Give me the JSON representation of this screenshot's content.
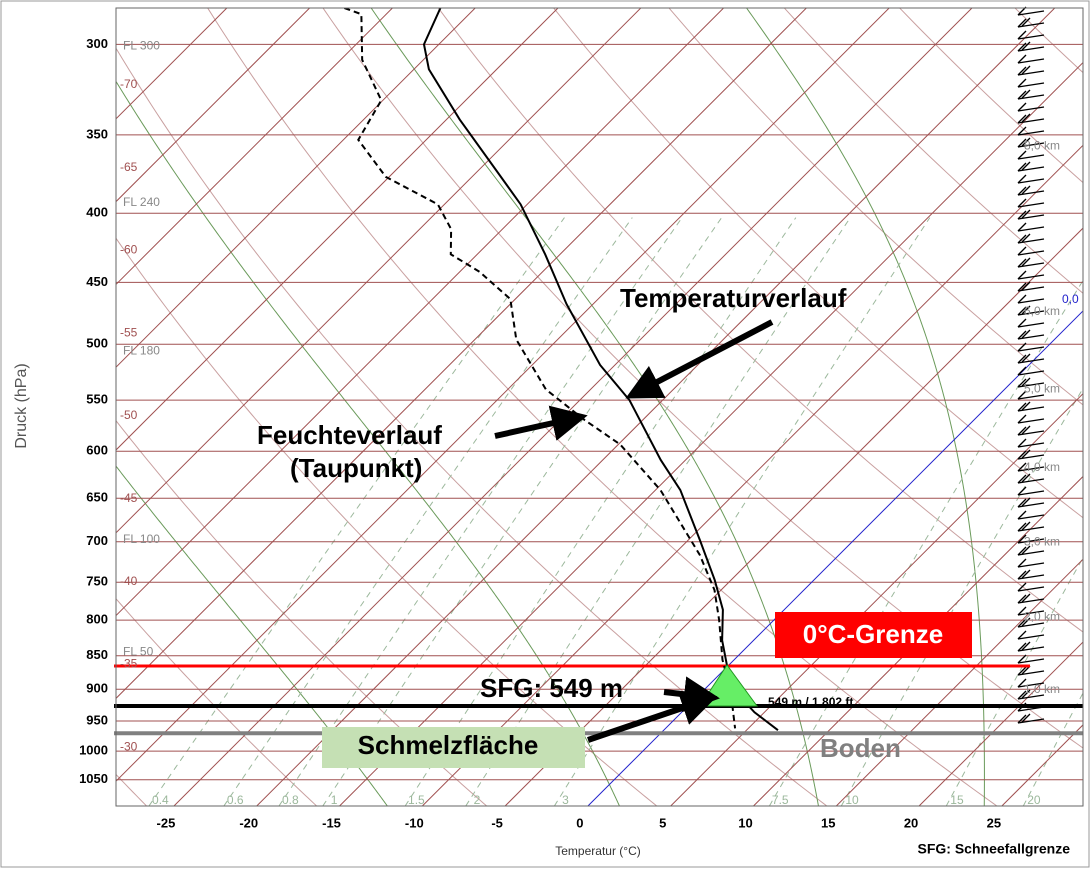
{
  "chart_data": {
    "type": "skewt",
    "xlabel": "Temperatur (°C)",
    "ylabel": "Druck (hPa)",
    "xlim": [
      -28.5,
      29.9
    ],
    "ylim": [
      1098,
      282
    ],
    "log_y": true,
    "xticks": [
      -25,
      -20,
      -15,
      -10,
      -5,
      0,
      5,
      10,
      15,
      20,
      25
    ],
    "yticks": [
      300,
      350,
      400,
      450,
      500,
      550,
      600,
      650,
      700,
      750,
      800,
      850,
      900,
      950,
      1000,
      1050
    ],
    "isotherm_labels": [
      -70,
      -65,
      -60,
      -55,
      -50,
      -45,
      -40,
      -35,
      -30
    ],
    "flight_levels": [
      {
        "value": 301,
        "label": "FL 300"
      },
      {
        "value": 393,
        "label": "FL 240"
      },
      {
        "value": 506,
        "label": "FL 180"
      },
      {
        "value": 698,
        "label": "FL 100"
      },
      {
        "value": 845,
        "label": "FL 50"
      }
    ],
    "height_labels": [
      {
        "value": 357,
        "label": "8,0 km"
      },
      {
        "value": 473,
        "label": "6,0 km"
      },
      {
        "value": 540,
        "label": "5,0 km"
      },
      {
        "value": 617,
        "label": "4,0 km"
      },
      {
        "value": 701,
        "label": "3,0 km"
      },
      {
        "value": 796,
        "label": "2,0 km"
      },
      {
        "value": 901,
        "label": "1,0 km"
      }
    ],
    "freezing_isotherm_label": "0,0",
    "mixing_ratio_labels": [
      0.4,
      0.6,
      0.8,
      1,
      1.5,
      2,
      3,
      7.5,
      10,
      15,
      20
    ],
    "series": [
      {
        "name": "Temperaturverlauf",
        "color": "#000000",
        "pressure": [
          282,
          300,
          313,
          341,
          394,
          429,
          467,
          518,
          550,
          609,
          641,
          698,
          747,
          786,
          828,
          864,
          901,
          936,
          965
        ],
        "values": [
          -57.1,
          -55.9,
          -54.1,
          -49.2,
          -40.4,
          -35.9,
          -31.6,
          -25.9,
          -22.0,
          -16.5,
          -13.5,
          -9.3,
          -6.0,
          -3.7,
          -1.9,
          -0.1,
          1.8,
          4.4,
          6.9
        ]
      },
      {
        "name": "Feuchteverlauf",
        "color": "#000000",
        "dashed": true,
        "pressure": [
          282,
          285,
          308,
          330,
          353,
          376,
          394,
          411,
          429,
          442,
          463,
          496,
          540,
          569,
          593,
          641,
          716,
          760,
          800,
          856,
          901,
          962
        ],
        "values": [
          -62.9,
          -61.5,
          -58.7,
          -55.1,
          -54.1,
          -50.2,
          -45.4,
          -43.1,
          -41.6,
          -38.8,
          -35.3,
          -32.5,
          -27.7,
          -23.5,
          -19.9,
          -14.7,
          -8.4,
          -5.4,
          -3.3,
          -0.7,
          1.6,
          4.2
        ]
      }
    ],
    "dewpoint_caption": [
      "Feuchteverlauf",
      "(Taupunkt)"
    ],
    "levels": [
      {
        "name": "0°C-Grenze",
        "value": 865,
        "color": "#ff0000"
      },
      {
        "name": "SFG: 549 m",
        "value": 926,
        "color": "#000000"
      },
      {
        "name": "Boden",
        "value": 970,
        "color": "#808080"
      }
    ],
    "sfg_detail": "549 m / 1.802 ft",
    "melt_label": "Schmelzfläche",
    "footnote": "SFG: Schneefallgrenze"
  }
}
